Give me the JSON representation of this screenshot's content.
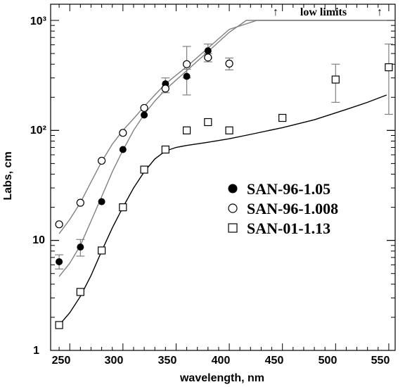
{
  "chart_data": {
    "type": "scatter",
    "xlabel": "wavelength, nm",
    "ylabel": "Labs, cm",
    "xlim": [
      232,
      556
    ],
    "ylim": [
      1,
      1000
    ],
    "y_scale": "log",
    "x_ticks": [
      "250",
      "300",
      "350",
      "400",
      "450",
      "500",
      "550"
    ],
    "x_tick_values": [
      250,
      300,
      350,
      400,
      450,
      500,
      550
    ],
    "y_ticks": [
      "1",
      "10",
      "10²",
      "10³"
    ],
    "y_tick_values": [
      1,
      10,
      100,
      1000
    ],
    "legend_position": "center-right",
    "annotation": "low limits",
    "series": [
      {
        "name": "SAN-96-1.05",
        "marker": "filled-circle",
        "color": "#000000",
        "points": [
          {
            "x": 240,
            "y": 6.4,
            "err": [
              5.5,
              7.4
            ]
          },
          {
            "x": 260,
            "y": 8.7,
            "err": [
              7.2,
              10.2
            ]
          },
          {
            "x": 280,
            "y": 22.5
          },
          {
            "x": 300,
            "y": 67
          },
          {
            "x": 320,
            "y": 138
          },
          {
            "x": 340,
            "y": 265,
            "err": [
              220,
              300
            ]
          },
          {
            "x": 360,
            "y": 310,
            "err": [
              210,
              360
            ]
          },
          {
            "x": 380,
            "y": 530,
            "err": [
              455,
              610
            ]
          }
        ]
      },
      {
        "name": "SAN-96-1.008",
        "marker": "open-circle",
        "color": "#000000",
        "points": [
          {
            "x": 240,
            "y": 14
          },
          {
            "x": 260,
            "y": 22
          },
          {
            "x": 280,
            "y": 53
          },
          {
            "x": 300,
            "y": 95
          },
          {
            "x": 320,
            "y": 160
          },
          {
            "x": 340,
            "y": 240
          },
          {
            "x": 360,
            "y": 400,
            "err": [
              300,
              580
            ]
          },
          {
            "x": 380,
            "y": 460,
            "err": [
              420,
              500
            ]
          },
          {
            "x": 400,
            "y": 405,
            "err": [
              355,
              455
            ]
          }
        ]
      },
      {
        "name": "SAN-01-1.13",
        "marker": "open-square",
        "color": "#000000",
        "points": [
          {
            "x": 240,
            "y": 1.7
          },
          {
            "x": 260,
            "y": 3.4
          },
          {
            "x": 280,
            "y": 8.1
          },
          {
            "x": 300,
            "y": 20
          },
          {
            "x": 320,
            "y": 44
          },
          {
            "x": 340,
            "y": 67
          },
          {
            "x": 360,
            "y": 100
          },
          {
            "x": 380,
            "y": 119
          },
          {
            "x": 400,
            "y": 100
          },
          {
            "x": 450,
            "y": 130
          },
          {
            "x": 500,
            "y": 290,
            "err": [
              180,
              400
            ]
          },
          {
            "x": 550,
            "y": 375,
            "err": [
              140,
              610
            ]
          }
        ]
      }
    ],
    "fits": [
      {
        "for": "SAN-96-1.05",
        "color": "#808080",
        "points": [
          [
            240,
            4.7
          ],
          [
            250,
            6.2
          ],
          [
            260,
            9
          ],
          [
            270,
            15
          ],
          [
            280,
            25
          ],
          [
            290,
            42
          ],
          [
            300,
            66
          ],
          [
            310,
            100
          ],
          [
            320,
            140
          ],
          [
            330,
            185
          ],
          [
            340,
            235
          ],
          [
            360,
            350
          ],
          [
            380,
            520
          ],
          [
            400,
            780
          ],
          [
            416,
            1000
          ],
          [
            455,
            1000
          ],
          [
            548,
            1000
          ]
        ]
      },
      {
        "for": "SAN-96-1.008",
        "color": "#808080",
        "points": [
          [
            240,
            11.5
          ],
          [
            250,
            15.5
          ],
          [
            260,
            22
          ],
          [
            270,
            34
          ],
          [
            280,
            52
          ],
          [
            290,
            75
          ],
          [
            300,
            100
          ],
          [
            310,
            128
          ],
          [
            320,
            165
          ],
          [
            330,
            210
          ],
          [
            340,
            265
          ],
          [
            360,
            380
          ],
          [
            380,
            560
          ],
          [
            400,
            830
          ],
          [
            426,
            1000
          ],
          [
            548,
            1000
          ]
        ]
      },
      {
        "for": "SAN-01-1.13",
        "color": "#000000",
        "points": [
          [
            240,
            1.7
          ],
          [
            250,
            2.2
          ],
          [
            260,
            3.1
          ],
          [
            270,
            4.8
          ],
          [
            280,
            8
          ],
          [
            290,
            13
          ],
          [
            300,
            20
          ],
          [
            310,
            30
          ],
          [
            320,
            42
          ],
          [
            330,
            55
          ],
          [
            340,
            65
          ],
          [
            350,
            70
          ],
          [
            360,
            73
          ],
          [
            380,
            78
          ],
          [
            400,
            84
          ],
          [
            420,
            92
          ],
          [
            450,
            106
          ],
          [
            480,
            125
          ],
          [
            510,
            155
          ],
          [
            530,
            180
          ],
          [
            548,
            210
          ]
        ]
      }
    ]
  }
}
